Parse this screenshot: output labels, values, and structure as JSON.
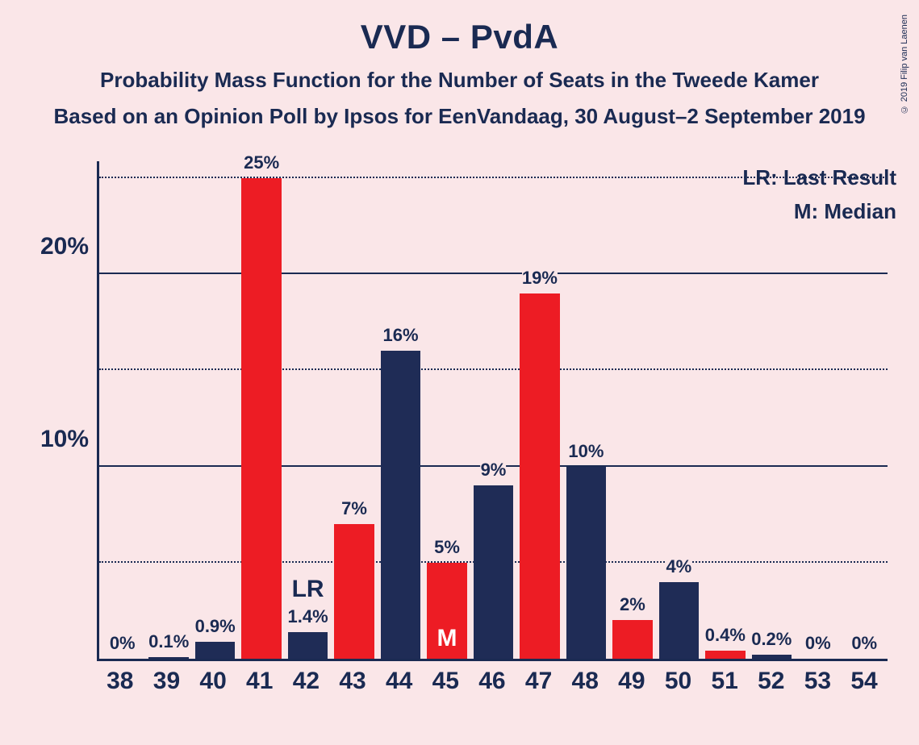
{
  "title": "VVD – PvdA",
  "subtitle1": "Probability Mass Function for the Number of Seats in the Tweede Kamer",
  "subtitle2": "Based on an Opinion Poll by Ipsos for EenVandaag, 30 August–2 September 2019",
  "legend_lr": "LR: Last Result",
  "legend_m": "M: Median",
  "copyright": "© 2019 Filip van Laenen",
  "chart": {
    "type": "bar",
    "background_color": "#fae6e8",
    "text_color": "#1a2a52",
    "bar_colors": {
      "red": "#ed1c24",
      "navy": "#1f2c56"
    },
    "y_max_display": 26,
    "y_ticks_major": [
      10,
      20
    ],
    "y_ticks_minor": [
      5,
      15,
      25
    ],
    "y_tick_labels": {
      "10": "10%",
      "20": "20%"
    },
    "lr_marker": "LR",
    "m_marker": "M",
    "bars": [
      {
        "x": "38",
        "value": 0,
        "label": "0%",
        "color": "red"
      },
      {
        "x": "39",
        "value": 0.1,
        "label": "0.1%",
        "color": "navy"
      },
      {
        "x": "40",
        "value": 0.9,
        "label": "0.9%",
        "color": "navy"
      },
      {
        "x": "41",
        "value": 25,
        "label": "25%",
        "color": "red"
      },
      {
        "x": "42",
        "value": 1.4,
        "label": "1.4%",
        "color": "navy",
        "marker": "LR"
      },
      {
        "x": "43",
        "value": 7,
        "label": "7%",
        "color": "red"
      },
      {
        "x": "44",
        "value": 16,
        "label": "16%",
        "color": "navy"
      },
      {
        "x": "45",
        "value": 5,
        "label": "5%",
        "color": "red",
        "marker": "M"
      },
      {
        "x": "46",
        "value": 9,
        "label": "9%",
        "color": "navy"
      },
      {
        "x": "47",
        "value": 19,
        "label": "19%",
        "color": "red"
      },
      {
        "x": "48",
        "value": 10,
        "label": "10%",
        "color": "navy"
      },
      {
        "x": "49",
        "value": 2,
        "label": "2%",
        "color": "red"
      },
      {
        "x": "50",
        "value": 4,
        "label": "4%",
        "color": "navy"
      },
      {
        "x": "51",
        "value": 0.4,
        "label": "0.4%",
        "color": "red"
      },
      {
        "x": "52",
        "value": 0.2,
        "label": "0.2%",
        "color": "navy"
      },
      {
        "x": "53",
        "value": 0,
        "label": "0%",
        "color": "red"
      },
      {
        "x": "54",
        "value": 0,
        "label": "0%",
        "color": "navy"
      }
    ]
  }
}
